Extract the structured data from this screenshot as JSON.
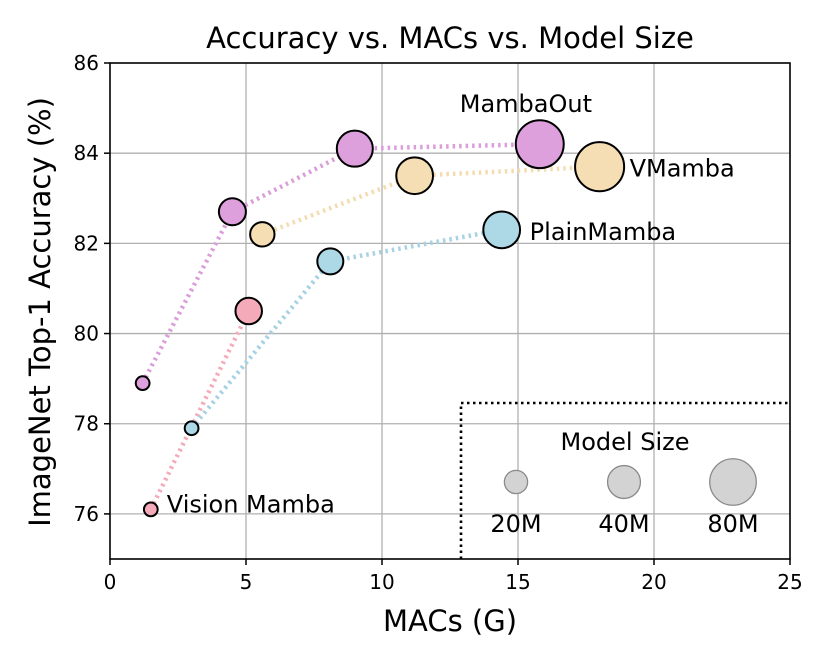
{
  "chart_data": {
    "type": "scatter",
    "title": "Accuracy vs. MACs vs. Model Size",
    "xlabel": "MACs (G)",
    "ylabel": "ImageNet Top-1 Accuracy (%)",
    "xlim": [
      0,
      25
    ],
    "ylim": [
      75,
      86
    ],
    "xticks": [
      0,
      5,
      10,
      15,
      20,
      25
    ],
    "yticks": [
      76,
      78,
      80,
      82,
      84,
      86
    ],
    "grid": true,
    "series": [
      {
        "name": "Vision Mamba",
        "color": "#f4aab8",
        "line_color": "#f4aab8",
        "points": [
          {
            "x": 1.5,
            "y": 76.1,
            "params_m": 7
          },
          {
            "x": 5.1,
            "y": 80.5,
            "params_m": 26
          }
        ]
      },
      {
        "name": "PlainMamba",
        "color": "#add8e6",
        "line_color": "#a6d2e4",
        "points": [
          {
            "x": 3.0,
            "y": 77.9,
            "params_m": 7
          },
          {
            "x": 8.1,
            "y": 81.6,
            "params_m": 25
          },
          {
            "x": 14.4,
            "y": 82.3,
            "params_m": 50
          }
        ]
      },
      {
        "name": "VMamba",
        "color": "#f5deb3",
        "line_color": "#f3dcb0",
        "points": [
          {
            "x": 5.6,
            "y": 82.2,
            "params_m": 22
          },
          {
            "x": 11.2,
            "y": 83.5,
            "params_m": 50
          },
          {
            "x": 18.0,
            "y": 83.7,
            "params_m": 89
          }
        ]
      },
      {
        "name": "MambaOut",
        "color": "#dda0dd",
        "line_color": "#da9ed9",
        "points": [
          {
            "x": 1.2,
            "y": 78.9,
            "params_m": 7
          },
          {
            "x": 4.5,
            "y": 82.7,
            "params_m": 27
          },
          {
            "x": 9.0,
            "y": 84.1,
            "params_m": 48
          },
          {
            "x": 15.8,
            "y": 84.2,
            "params_m": 85
          }
        ]
      }
    ],
    "labels": [
      {
        "text": "Vision Mamba",
        "series": "Vision Mamba"
      },
      {
        "text": "PlainMamba",
        "series": "PlainMamba"
      },
      {
        "text": "VMamba",
        "series": "VMamba"
      },
      {
        "text": "MambaOut",
        "series": "MambaOut"
      }
    ],
    "size_legend": {
      "title": "Model Size",
      "color": "#d3d3d3",
      "entries": [
        {
          "label": "20M",
          "params_m": 20
        },
        {
          "label": "40M",
          "params_m": 40
        },
        {
          "label": "80M",
          "params_m": 80
        }
      ]
    }
  }
}
